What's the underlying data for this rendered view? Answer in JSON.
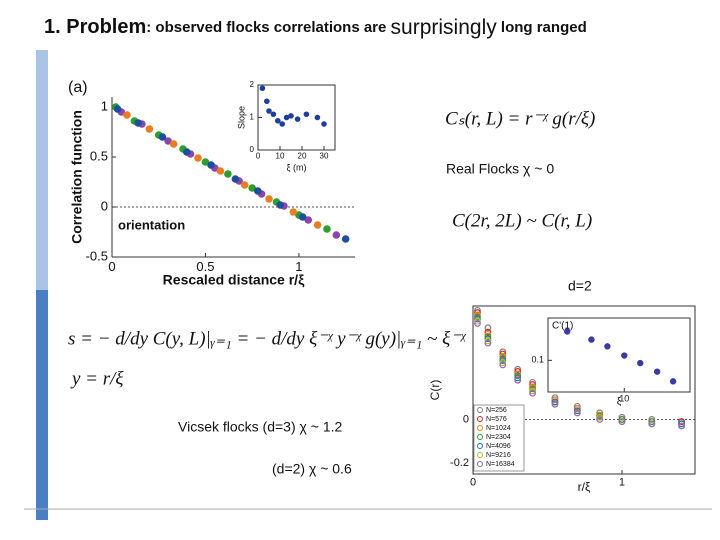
{
  "slide": {
    "title": {
      "number": "1. Problem",
      "colon": ": observed flocks correlations are ",
      "emph": "surprisingly",
      "tail": " long ranged"
    },
    "equations": {
      "scaling": "Cₛ(r, L) = r⁻ᵡ g(r/ξ)",
      "real_flocks": "Real Flocks  χ ~ 0",
      "doubling": "C(2r, 2L) ~ C(r, L)",
      "dimension": "d=2",
      "slope": "s = − d/dy C(y, L)|ᵧ₌₁ = − d/dy ξ⁻ᵡ y⁻ᵡ g(y)|ᵧ₌₁ ~ ξ⁻ᵡ",
      "y_def": "y = r/ξ",
      "vicsek3": "Vicsek flocks (d=3) χ ~ 1.2",
      "vicsek2": "(d=2) χ ~ 0.6"
    }
  },
  "chart_data": [
    {
      "type": "scatter",
      "panel_label": "(a)",
      "annotation": "orientation",
      "x_label": "Rescaled distance r/ξ",
      "y_label": "Correlation function",
      "xlim": [
        0,
        1.3
      ],
      "ylim": [
        -0.5,
        1.1
      ],
      "xticks": [
        0,
        0.5,
        1
      ],
      "yticks": [
        -0.5,
        0,
        0.5,
        1
      ],
      "frame": "axes",
      "zero_line": true,
      "series": [
        {
          "color": "#2ca02c",
          "x": [
            0.02,
            0.12,
            0.25,
            0.38,
            0.5,
            0.62,
            0.75,
            0.88,
            1.0,
            1.15
          ],
          "values": [
            1.0,
            0.86,
            0.72,
            0.58,
            0.45,
            0.33,
            0.19,
            0.05,
            -0.08,
            -0.22
          ]
        },
        {
          "color": "#8e44ad",
          "x": [
            0.05,
            0.16,
            0.3,
            0.42,
            0.55,
            0.68,
            0.8,
            0.92,
            1.05,
            1.2
          ],
          "values": [
            0.95,
            0.83,
            0.66,
            0.53,
            0.39,
            0.26,
            0.13,
            0.01,
            -0.13,
            -0.28
          ]
        },
        {
          "color": "#e67e22",
          "x": [
            0.08,
            0.2,
            0.33,
            0.46,
            0.58,
            0.71,
            0.84,
            0.97,
            1.1
          ],
          "values": [
            0.92,
            0.78,
            0.63,
            0.49,
            0.36,
            0.22,
            0.08,
            -0.05,
            -0.18
          ]
        },
        {
          "color": "#1f4e9c",
          "x": [
            0.03,
            0.14,
            0.27,
            0.4,
            0.53,
            0.66,
            0.78,
            0.9,
            1.02,
            1.25
          ],
          "values": [
            0.98,
            0.84,
            0.7,
            0.55,
            0.42,
            0.28,
            0.16,
            0.02,
            -0.1,
            -0.32
          ]
        }
      ]
    },
    {
      "type": "scatter",
      "x_label": "ξ (m)",
      "y_label": "Slope",
      "xlim": [
        0,
        35
      ],
      "ylim": [
        0,
        2
      ],
      "xticks": [
        0,
        10,
        20,
        30
      ],
      "yticks": [
        0,
        1,
        2
      ],
      "frame": "box",
      "series": [
        {
          "color": "#1f3f9c",
          "x": [
            2,
            4,
            5,
            7,
            9,
            11,
            13,
            15,
            18,
            22,
            27,
            30
          ],
          "values": [
            1.9,
            1.5,
            1.2,
            1.1,
            0.9,
            0.8,
            1.0,
            1.05,
            0.95,
            1.1,
            1.0,
            0.8
          ]
        }
      ]
    },
    {
      "type": "scatter",
      "x_label": "r/ξ",
      "y_label": "C(r)",
      "xlim": [
        0,
        1.49
      ],
      "ylim": [
        -0.25,
        0.52
      ],
      "xticks": [
        0,
        1
      ],
      "yticks": [
        -0.2,
        0
      ],
      "frame": "box",
      "zero_line": true,
      "legend": "bottom-left",
      "x": [
        0.03,
        0.1,
        0.2,
        0.3,
        0.4,
        0.55,
        0.7,
        0.85,
        1.0,
        1.2,
        1.4
      ],
      "series": [
        {
          "name": "N=256",
          "color": "#7f7f7f",
          "values": [
            0.5,
            0.42,
            0.31,
            0.23,
            0.17,
            0.1,
            0.06,
            0.03,
            0.01,
            0.0,
            -0.01
          ]
        },
        {
          "name": "N=576",
          "color": "#d62728",
          "values": [
            0.49,
            0.4,
            0.3,
            0.22,
            0.16,
            0.09,
            0.05,
            0.02,
            0.0,
            -0.01,
            -0.01
          ]
        },
        {
          "name": "N=1024",
          "color": "#ff7f0e",
          "values": [
            0.48,
            0.39,
            0.29,
            0.21,
            0.15,
            0.09,
            0.05,
            0.02,
            0.0,
            -0.01,
            -0.02
          ]
        },
        {
          "name": "N=2304",
          "color": "#2ca02c",
          "values": [
            0.47,
            0.38,
            0.28,
            0.2,
            0.14,
            0.08,
            0.04,
            0.015,
            0.0,
            -0.01,
            -0.02
          ]
        },
        {
          "name": "N=4096",
          "color": "#1f77b4",
          "values": [
            0.46,
            0.37,
            0.27,
            0.19,
            0.13,
            0.08,
            0.04,
            0.01,
            -0.01,
            -0.02,
            -0.02
          ]
        },
        {
          "name": "N=9216",
          "color": "#bcbd22",
          "values": [
            0.45,
            0.36,
            0.26,
            0.18,
            0.13,
            0.07,
            0.03,
            0.01,
            -0.01,
            -0.02,
            -0.03
          ]
        },
        {
          "name": "N=16384",
          "color": "#9467bd",
          "values": [
            0.44,
            0.35,
            0.25,
            0.18,
            0.12,
            0.07,
            0.03,
            0.0,
            -0.01,
            -0.02,
            -0.03
          ]
        }
      ]
    },
    {
      "type": "scatter",
      "x_label": "ξ",
      "y_label": "C'(1)",
      "xlog": true,
      "ylog": true,
      "xlim": [
        2,
        40
      ],
      "ylim": [
        0.03,
        0.5
      ],
      "xticks": [
        10
      ],
      "yticks": [
        0.1
      ],
      "frame": "box",
      "series": [
        {
          "color": "#3a3aa0",
          "x": [
            3,
            5,
            7,
            10,
            14,
            20,
            28
          ],
          "values": [
            0.3,
            0.22,
            0.17,
            0.12,
            0.09,
            0.065,
            0.045
          ]
        }
      ]
    }
  ]
}
